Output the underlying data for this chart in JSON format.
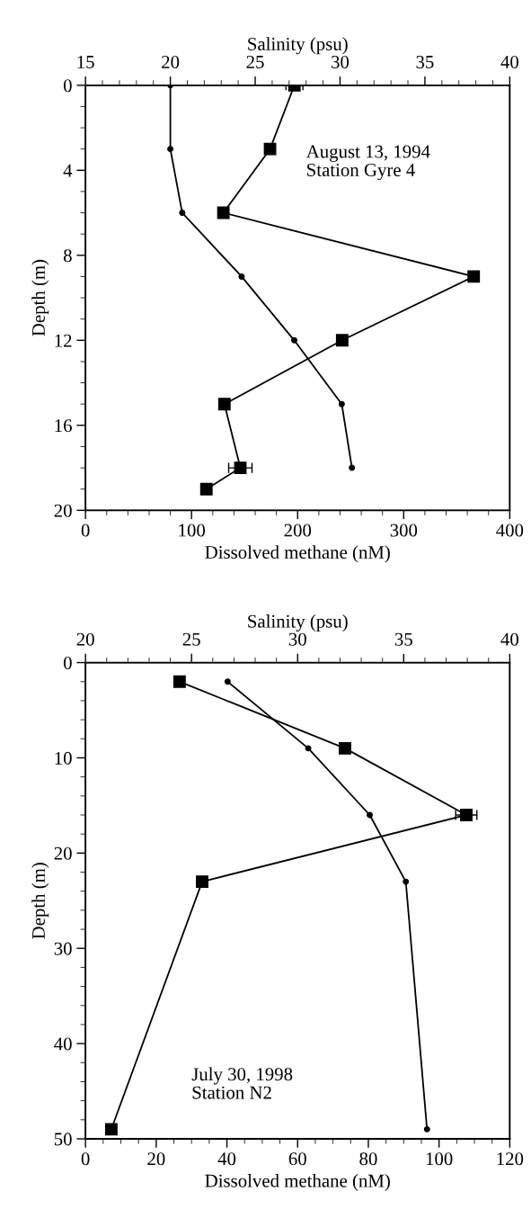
{
  "chart_data": [
    {
      "type": "line",
      "orientation": "horizontal",
      "xlabel": "Dissolved methane (nM)",
      "x2label": "Salinity (psu)",
      "ylabel": "Depth (m)",
      "xlim": [
        0,
        400
      ],
      "xticks": [
        0,
        100,
        200,
        300,
        400
      ],
      "x2lim": [
        15,
        40
      ],
      "x2ticks": [
        15,
        20,
        25,
        30,
        35,
        40
      ],
      "ylim": [
        20,
        0
      ],
      "yticks": [
        0,
        4,
        8,
        12,
        16,
        20
      ],
      "grid": false,
      "legend": false,
      "annotations": [
        "August 13, 1994\nStation Gyre 4"
      ],
      "series": [
        {
          "color": "#000000",
          "marker": "square",
          "x": [
            0,
            3,
            6,
            9,
            12,
            15,
            18,
            19
          ],
          "values": [
            197,
            174,
            130,
            366,
            242,
            131,
            146,
            114
          ],
          "errors": [
            8,
            null,
            null,
            null,
            null,
            null,
            11,
            null
          ]
        },
        {
          "color": "#000000",
          "marker": "circle",
          "axis": "x2",
          "x": [
            0,
            3,
            6,
            9,
            12,
            15,
            18
          ],
          "values": [
            20.0,
            20.0,
            20.7,
            24.2,
            27.3,
            30.1,
            30.7
          ]
        }
      ]
    },
    {
      "type": "line",
      "orientation": "horizontal",
      "xlabel": "Dissolved methane (nM)",
      "x2label": "Salinity (psu)",
      "ylabel": "Depth (m)",
      "xlim": [
        0,
        120
      ],
      "xticks": [
        0,
        20,
        40,
        60,
        80,
        100,
        120
      ],
      "x2lim": [
        20,
        40
      ],
      "x2ticks": [
        20,
        25,
        30,
        35,
        40
      ],
      "ylim": [
        50,
        0
      ],
      "yticks": [
        0,
        10,
        20,
        30,
        40,
        50
      ],
      "grid": false,
      "legend": false,
      "annotations": [
        "July 30, 1998\nStation N2"
      ],
      "series": [
        {
          "color": "#000000",
          "marker": "square",
          "x": [
            2,
            9,
            16,
            23,
            49
          ],
          "values": [
            26.6,
            73.4,
            107.7,
            33.0,
            7.3
          ],
          "errors": [
            null,
            null,
            3,
            null,
            null
          ]
        },
        {
          "color": "#000000",
          "marker": "circle",
          "axis": "x2",
          "x": [
            2,
            9,
            16,
            23,
            49
          ],
          "values": [
            26.7,
            30.5,
            33.4,
            35.1,
            36.1
          ]
        }
      ]
    }
  ]
}
